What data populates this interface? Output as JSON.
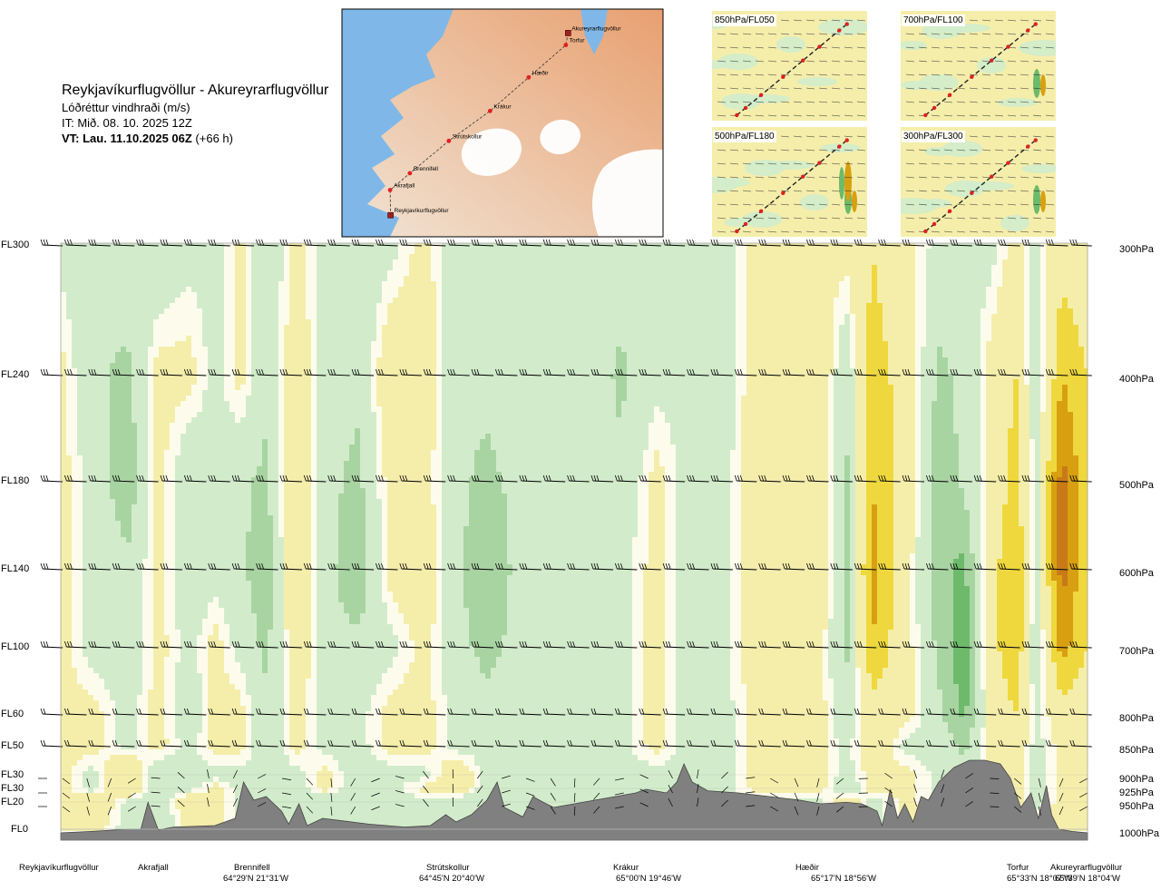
{
  "header": {
    "title": "Reykjavíkurflugvöllur - Akureyrarflugvöllur",
    "subtitle": "Lóðréttur vindhraði (m/s)",
    "it": "IT: Mið. 08. 10. 2025 12Z",
    "vt_bold": "VT: Lau. 11.10.2025 06Z",
    "vt_rest": " (+66 h)"
  },
  "map": {
    "places": [
      {
        "name": "Akureyrarflugvöllur",
        "lon": 18.07,
        "lat": 65.65
      },
      {
        "name": "Torfur",
        "lon": 18.12,
        "lat": 65.55
      },
      {
        "name": "Hæðir",
        "lon": 18.93,
        "lat": 65.28
      },
      {
        "name": "Krákur",
        "lon": 19.77,
        "lat": 65.0
      },
      {
        "name": "Strútskollur",
        "lon": 20.67,
        "lat": 64.75
      },
      {
        "name": "Brennifell",
        "lon": 21.52,
        "lat": 64.48
      },
      {
        "name": "Akrafjall",
        "lon": 21.95,
        "lat": 64.34
      },
      {
        "name": "Reykjavíkurflugvöllur",
        "lon": 21.94,
        "lat": 64.13
      }
    ]
  },
  "panels": [
    {
      "label": "850hPa/FL050"
    },
    {
      "label": "700hPa/FL100"
    },
    {
      "label": "500hPa/FL180"
    },
    {
      "label": "300hPa/FL300"
    }
  ],
  "levels": [
    {
      "fl": "FL300",
      "hpa": "300hPa"
    },
    {
      "fl": "FL240",
      "hpa": "400hPa"
    },
    {
      "fl": "FL180",
      "hpa": "500hPa"
    },
    {
      "fl": "FL140",
      "hpa": "600hPa"
    },
    {
      "fl": "FL100",
      "hpa": "700hPa"
    },
    {
      "fl": "FL60",
      "hpa": "800hPa"
    },
    {
      "fl": "FL50",
      "hpa": "850hPa"
    },
    {
      "fl": "FL30",
      "hpa": "900hPa"
    },
    {
      "fl": "FL30",
      "hpa": "925hPa"
    },
    {
      "fl": "FL20",
      "hpa": "950hPa"
    },
    {
      "fl": "FL0",
      "hpa": "1000hPa"
    }
  ],
  "locations": [
    {
      "name": "Reykjavíkurflugvöllur",
      "coord": ""
    },
    {
      "name": "Akrafjall",
      "coord": ""
    },
    {
      "name": "Brennifell",
      "coord": "64°29'N 21°31'W"
    },
    {
      "name": "Strútskollur",
      "coord": "64°45'N 20°40'W"
    },
    {
      "name": "Krákur",
      "coord": "65°00'N 19°46'W"
    },
    {
      "name": "Hæðir",
      "coord": "65°17'N 18°56'W"
    },
    {
      "name": "Torfur",
      "coord": "65°33'N 18°07'W"
    },
    {
      "name": "Akureyrarflugvöllur",
      "coord": "65°39'N 18°04'W"
    }
  ],
  "colors": {
    "sea": "#7fb8e8",
    "land_low": "#f1e4d5",
    "land_high": "#e8a070",
    "ice": "#ffffff",
    "terrain": "#808080",
    "up_light": "#f5eeab",
    "up_mid": "#eed83e",
    "up_strong": "#d8a010",
    "up_max": "#c87a18",
    "down_light": "#d2eccb",
    "down_mid": "#a8d4a2",
    "down_strong": "#6cba6a",
    "neutral": "#fdfcec"
  },
  "chart_data": {
    "type": "heatmap",
    "variable": "Lóðréttur vindhraði (m/s)",
    "y_levels_hpa": [
      300,
      400,
      500,
      600,
      700,
      800,
      850,
      900,
      925,
      950,
      1000
    ],
    "sign_key": {
      "positive": "yellow/orange",
      "negative": "green"
    },
    "columns_relative_to_path": [
      {
        "position": 0.0,
        "profile": [
          -0.1,
          0.1,
          0.1,
          0.1,
          0.1,
          0.1,
          0.1,
          0.1,
          0.1,
          0.1,
          0.1
        ]
      },
      {
        "position": 0.03,
        "profile": [
          -0.2,
          -0.2,
          -0.1,
          -0.1,
          -0.1,
          0.1,
          0.1,
          -0.1,
          -0.1,
          0.3,
          0.1
        ]
      },
      {
        "position": 0.065,
        "profile": [
          -0.1,
          -0.3,
          -0.4,
          -0.2,
          -0.2,
          -0.1,
          -0.1,
          0.3,
          0.3,
          -0.1,
          -0.1
        ]
      },
      {
        "position": 0.095,
        "profile": [
          -0.2,
          0.1,
          0.1,
          0.1,
          0.1,
          0.1,
          0.1,
          -0.2,
          -0.2,
          -0.2,
          -0.2
        ]
      },
      {
        "position": 0.125,
        "profile": [
          -0.1,
          0.1,
          -0.2,
          -0.2,
          -0.1,
          -0.2,
          -0.1,
          -0.1,
          -0.1,
          0.2,
          0.1
        ]
      },
      {
        "position": 0.15,
        "profile": [
          -0.1,
          -0.1,
          -0.1,
          -0.1,
          0.1,
          0.1,
          0.1,
          -0.1,
          0.1,
          0.1,
          0.1
        ]
      },
      {
        "position": 0.175,
        "profile": [
          0.1,
          0.1,
          -0.2,
          -0.2,
          -0.1,
          0.1,
          0.1,
          -0.1,
          -0.1,
          -0.1,
          -0.1
        ]
      },
      {
        "position": 0.2,
        "profile": [
          -0.2,
          -0.2,
          -0.3,
          -0.4,
          -0.3,
          -0.2,
          -0.2,
          -0.1,
          -0.1,
          -0.1,
          -0.1
        ]
      },
      {
        "position": 0.23,
        "profile": [
          0.1,
          0.2,
          0.3,
          0.3,
          0.2,
          0.1,
          0.1,
          -0.1,
          -0.1,
          -0.1,
          -0.1
        ]
      },
      {
        "position": 0.26,
        "profile": [
          -0.1,
          -0.2,
          -0.2,
          -0.2,
          -0.2,
          -0.1,
          -0.1,
          0.1,
          0.1,
          -0.2,
          -0.1
        ]
      },
      {
        "position": 0.29,
        "profile": [
          -0.2,
          -0.2,
          -0.3,
          -0.4,
          -0.2,
          -0.1,
          -0.1,
          -0.2,
          -0.2,
          -0.2,
          -0.1
        ]
      },
      {
        "position": 0.32,
        "profile": [
          -0.1,
          0.2,
          0.1,
          0.1,
          -0.1,
          0.1,
          0.1,
          -0.1,
          -0.1,
          -0.1,
          -0.1
        ]
      },
      {
        "position": 0.355,
        "profile": [
          0.1,
          0.2,
          0.1,
          0.2,
          0.1,
          0.1,
          0.1,
          -0.1,
          0.1,
          -0.1,
          -0.1
        ]
      },
      {
        "position": 0.385,
        "profile": [
          -0.2,
          -0.2,
          -0.2,
          -0.2,
          -0.2,
          -0.1,
          -0.1,
          0.2,
          0.3,
          -0.2,
          -0.1
        ]
      },
      {
        "position": 0.415,
        "profile": [
          -0.1,
          -0.2,
          -0.3,
          -0.4,
          -0.3,
          -0.2,
          -0.1,
          -0.1,
          -0.2,
          -0.2,
          -0.1
        ]
      },
      {
        "position": 0.445,
        "profile": [
          -0.1,
          -0.1,
          -0.2,
          -0.2,
          -0.2,
          -0.1,
          -0.1,
          -0.1,
          -0.1,
          -0.1,
          -0.1
        ]
      },
      {
        "position": 0.48,
        "profile": [
          -0.1,
          -0.2,
          -0.2,
          -0.2,
          -0.2,
          -0.1,
          -0.1,
          -0.1,
          -0.1,
          -0.1,
          -0.1
        ]
      },
      {
        "position": 0.515,
        "profile": [
          -0.1,
          -0.1,
          -0.1,
          -0.1,
          -0.1,
          -0.1,
          -0.1,
          -0.1,
          -0.1,
          -0.1,
          -0.1
        ]
      },
      {
        "position": 0.545,
        "profile": [
          -0.1,
          -0.3,
          -0.2,
          -0.1,
          -0.1,
          -0.1,
          -0.1,
          -0.1,
          -0.1,
          -0.1,
          -0.1
        ]
      },
      {
        "position": 0.58,
        "profile": [
          -0.1,
          -0.1,
          0.1,
          0.1,
          0.1,
          0.1,
          0.1,
          -0.1,
          -0.1,
          -0.1,
          -0.1
        ]
      },
      {
        "position": 0.61,
        "profile": [
          -0.1,
          -0.1,
          -0.1,
          -0.1,
          -0.1,
          -0.1,
          -0.1,
          -0.1,
          -0.1,
          -0.1,
          -0.1
        ]
      },
      {
        "position": 0.645,
        "profile": [
          -0.1,
          -0.2,
          -0.1,
          -0.1,
          -0.1,
          -0.1,
          -0.1,
          -0.1,
          -0.1,
          -0.1,
          -0.1
        ]
      },
      {
        "position": 0.68,
        "profile": [
          0.1,
          0.2,
          0.2,
          0.2,
          0.2,
          0.1,
          0.1,
          0.1,
          0.1,
          -0.1,
          -0.1
        ]
      },
      {
        "position": 0.715,
        "profile": [
          0.1,
          0.2,
          0.1,
          0.1,
          0.2,
          0.1,
          0.1,
          0.1,
          0.1,
          -0.1,
          -0.1
        ]
      },
      {
        "position": 0.74,
        "profile": [
          0.1,
          0.2,
          0.2,
          0.2,
          0.1,
          0.1,
          0.1,
          0.1,
          0.1,
          -0.1,
          -0.1
        ]
      },
      {
        "position": 0.765,
        "profile": [
          0.1,
          -0.2,
          -0.3,
          -0.3,
          -0.3,
          -0.2,
          -0.1,
          -0.1,
          -0.2,
          0.2,
          -0.1
        ]
      },
      {
        "position": 0.79,
        "profile": [
          0.3,
          0.4,
          0.5,
          0.6,
          0.5,
          0.2,
          0.2,
          0.1,
          0.1,
          -0.1,
          -0.1
        ]
      },
      {
        "position": 0.825,
        "profile": [
          0.1,
          0.2,
          0.2,
          0.1,
          0.1,
          0.1,
          -0.1,
          0.1,
          0.1,
          0.1,
          0.1
        ]
      },
      {
        "position": 0.855,
        "profile": [
          -0.1,
          -0.3,
          -0.4,
          -0.4,
          -0.3,
          -0.2,
          -0.1,
          -0.1,
          -0.1,
          -0.1,
          0.1
        ]
      },
      {
        "position": 0.88,
        "profile": [
          -0.1,
          -0.2,
          -0.2,
          -0.5,
          -0.6,
          -0.5,
          -0.3,
          -0.2,
          -0.2,
          -0.2,
          -0.1
        ]
      },
      {
        "position": 0.905,
        "profile": [
          -0.1,
          0.1,
          0.1,
          0.2,
          0.2,
          0.1,
          0.1,
          0.2,
          0.3,
          0.2,
          0.1
        ]
      },
      {
        "position": 0.93,
        "profile": [
          0.1,
          0.3,
          0.4,
          0.5,
          0.5,
          0.3,
          0.2,
          0.1,
          0.2,
          0.1,
          0.1
        ]
      },
      {
        "position": 0.95,
        "profile": [
          -0.1,
          -0.2,
          -0.1,
          -0.1,
          -0.2,
          -0.1,
          -0.1,
          -0.1,
          -0.1,
          -0.1,
          0.1
        ]
      },
      {
        "position": 0.975,
        "profile": [
          0.2,
          0.5,
          0.8,
          0.8,
          0.6,
          0.2,
          0.1,
          0.1,
          0.1,
          0.1,
          0.1
        ]
      },
      {
        "position": 1.0,
        "profile": [
          0.1,
          0.3,
          0.3,
          0.3,
          0.3,
          0.1,
          0.1,
          0.1,
          0.1,
          0.1,
          0.1
        ]
      }
    ],
    "terrain_relative": [
      [
        0.0,
        0.0
      ],
      [
        0.03,
        0.02
      ],
      [
        0.065,
        0.05
      ],
      [
        0.078,
        0.05
      ],
      [
        0.085,
        0.42
      ],
      [
        0.095,
        0.04
      ],
      [
        0.11,
        0.08
      ],
      [
        0.15,
        0.1
      ],
      [
        0.17,
        0.2
      ],
      [
        0.178,
        0.7
      ],
      [
        0.188,
        0.45
      ],
      [
        0.2,
        0.5
      ],
      [
        0.215,
        0.3
      ],
      [
        0.222,
        0.12
      ],
      [
        0.232,
        0.4
      ],
      [
        0.24,
        0.1
      ],
      [
        0.255,
        0.2
      ],
      [
        0.3,
        0.12
      ],
      [
        0.335,
        0.08
      ],
      [
        0.36,
        0.1
      ],
      [
        0.375,
        0.25
      ],
      [
        0.385,
        0.15
      ],
      [
        0.4,
        0.25
      ],
      [
        0.415,
        0.45
      ],
      [
        0.425,
        0.7
      ],
      [
        0.432,
        0.35
      ],
      [
        0.45,
        0.22
      ],
      [
        0.46,
        0.5
      ],
      [
        0.47,
        0.42
      ],
      [
        0.48,
        0.35
      ],
      [
        0.5,
        0.4
      ],
      [
        0.52,
        0.45
      ],
      [
        0.54,
        0.5
      ],
      [
        0.56,
        0.55
      ],
      [
        0.57,
        0.6
      ],
      [
        0.59,
        0.55
      ],
      [
        0.6,
        0.7
      ],
      [
        0.607,
        0.95
      ],
      [
        0.615,
        0.7
      ],
      [
        0.63,
        0.58
      ],
      [
        0.66,
        0.55
      ],
      [
        0.69,
        0.5
      ],
      [
        0.72,
        0.45
      ],
      [
        0.74,
        0.4
      ],
      [
        0.765,
        0.42
      ],
      [
        0.78,
        0.4
      ],
      [
        0.795,
        0.3
      ],
      [
        0.8,
        0.1
      ],
      [
        0.808,
        0.6
      ],
      [
        0.815,
        0.2
      ],
      [
        0.822,
        0.4
      ],
      [
        0.83,
        0.15
      ],
      [
        0.838,
        0.5
      ],
      [
        0.845,
        0.45
      ],
      [
        0.855,
        0.7
      ],
      [
        0.87,
        0.9
      ],
      [
        0.885,
        1.0
      ],
      [
        0.9,
        1.0
      ],
      [
        0.915,
        0.95
      ],
      [
        0.925,
        0.75
      ],
      [
        0.935,
        0.35
      ],
      [
        0.945,
        0.55
      ],
      [
        0.952,
        0.2
      ],
      [
        0.96,
        0.65
      ],
      [
        0.965,
        0.25
      ],
      [
        0.972,
        0.05
      ],
      [
        0.985,
        0.02
      ],
      [
        1.0,
        0.0
      ]
    ]
  }
}
